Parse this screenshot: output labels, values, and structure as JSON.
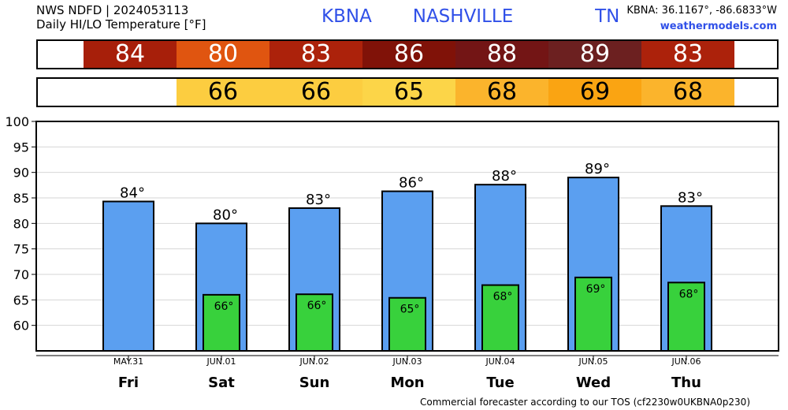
{
  "header": {
    "line1": "NWS NDFD | 2024053113",
    "line2": "Daily HI/LO Temperature [°F]",
    "station_title": "KBNA   NASHVILLE      TN",
    "coords": "KBNA: 36.1167°, -86.6833°W",
    "site": "weathermodels.com"
  },
  "colors": {
    "hi_bar": "#5b9ff0",
    "lo_bar": "#38d13c",
    "title_blue": "#3050e8"
  },
  "hi_strip": [
    {
      "value": "84",
      "color": "#a71f0a",
      "text_color": "#ffffff"
    },
    {
      "value": "80",
      "color": "#e05510",
      "text_color": "#ffffff"
    },
    {
      "value": "83",
      "color": "#ac220b",
      "text_color": "#ffffff"
    },
    {
      "value": "86",
      "color": "#801208",
      "text_color": "#ffffff"
    },
    {
      "value": "88",
      "color": "#731515",
      "text_color": "#ffffff"
    },
    {
      "value": "89",
      "color": "#6c2020",
      "text_color": "#ffffff"
    },
    {
      "value": "83",
      "color": "#ac220b",
      "text_color": "#ffffff"
    }
  ],
  "lo_strip": [
    {
      "value": "",
      "color": "#ffffff",
      "text_color": "#000000"
    },
    {
      "value": "66",
      "color": "#fccd40",
      "text_color": "#000000"
    },
    {
      "value": "66",
      "color": "#fccd40",
      "text_color": "#000000"
    },
    {
      "value": "65",
      "color": "#fcd548",
      "text_color": "#000000"
    },
    {
      "value": "68",
      "color": "#fbb42c",
      "text_color": "#000000"
    },
    {
      "value": "69",
      "color": "#faa412",
      "text_color": "#000000"
    },
    {
      "value": "68",
      "color": "#fbb42c",
      "text_color": "#000000"
    }
  ],
  "chart_data": {
    "type": "bar",
    "title": "Daily HI/LO Temperature [°F]",
    "ylim": [
      55,
      100
    ],
    "yticks": [
      60,
      65,
      70,
      75,
      80,
      85,
      90,
      95,
      100
    ],
    "grid": "horizontal",
    "categories": [
      "Fri",
      "Sat",
      "Sun",
      "Mon",
      "Tue",
      "Wed",
      "Thu"
    ],
    "dates": [
      "MAY.31",
      "JUN.01",
      "JUN.02",
      "JUN.03",
      "JUN.04",
      "JUN.05",
      "JUN.06"
    ],
    "series": [
      {
        "values": [
          84.3,
          80,
          83,
          86.3,
          87.6,
          89,
          83.4
        ],
        "labels": [
          "84°",
          "80°",
          "83°",
          "86°",
          "88°",
          "89°",
          "83°"
        ]
      },
      {
        "values": [
          null,
          66,
          66.1,
          65.4,
          67.9,
          69.4,
          68.4
        ],
        "labels": [
          "",
          "66°",
          "66°",
          "65°",
          "68°",
          "69°",
          "68°"
        ]
      }
    ]
  },
  "footer": "Commercial forecaster according to our TOS (cf2230w0UKBNA0p230)"
}
